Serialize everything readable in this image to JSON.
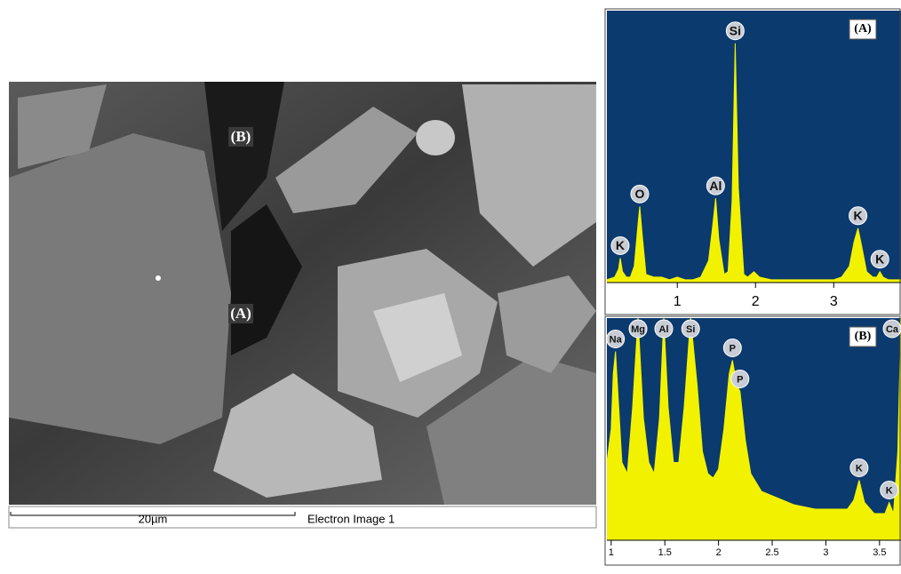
{
  "image": {
    "labels": [
      "(B)",
      "(A)"
    ],
    "scale_bar": "20µm",
    "caption": "Electron Image 1"
  },
  "chart_data": [
    {
      "type": "area",
      "title": "(A)",
      "color": "#f2f200",
      "background": "#0b3a6e",
      "xlim": [
        0.1,
        3.86
      ],
      "ylim": [
        0,
        100
      ],
      "xticks": [
        1,
        2,
        3
      ],
      "x": [
        0.1,
        0.2,
        0.25,
        0.27,
        0.3,
        0.35,
        0.4,
        0.45,
        0.5,
        0.52,
        0.55,
        0.6,
        0.7,
        0.8,
        0.9,
        1.0,
        1.1,
        1.2,
        1.3,
        1.4,
        1.45,
        1.49,
        1.53,
        1.6,
        1.65,
        1.7,
        1.74,
        1.78,
        1.85,
        1.9,
        1.98,
        2.05,
        2.2,
        2.4,
        2.6,
        2.8,
        3.0,
        3.1,
        3.2,
        3.26,
        3.31,
        3.36,
        3.42,
        3.5,
        3.55,
        3.59,
        3.63,
        3.7,
        3.8,
        3.86
      ],
      "values": [
        1,
        2,
        5,
        9,
        4,
        2,
        2,
        6,
        22,
        28,
        18,
        3,
        2,
        2,
        1,
        2,
        1,
        1,
        2,
        8,
        20,
        31,
        16,
        3,
        4,
        30,
        88,
        35,
        3,
        2,
        4,
        2,
        1,
        1,
        1,
        1,
        1,
        2,
        6,
        15,
        20,
        13,
        4,
        2,
        2,
        4,
        2,
        1,
        1,
        1
      ],
      "peak_labels": [
        {
          "label": "K",
          "x": 0.27
        },
        {
          "label": "O",
          "x": 0.52
        },
        {
          "label": "Al",
          "x": 1.49
        },
        {
          "label": "Si",
          "x": 1.74
        },
        {
          "label": "K",
          "x": 3.31
        },
        {
          "label": "K",
          "x": 3.59
        }
      ]
    },
    {
      "type": "area",
      "title": "(B)",
      "color": "#f2f200",
      "background": "#0b3a6e",
      "xlim": [
        0.96,
        3.7
      ],
      "ylim": [
        0,
        100
      ],
      "xticks": [
        1,
        1.5,
        2,
        2.5,
        3,
        3.5
      ],
      "x": [
        0.96,
        1.0,
        1.02,
        1.04,
        1.07,
        1.1,
        1.15,
        1.2,
        1.25,
        1.3,
        1.35,
        1.4,
        1.45,
        1.49,
        1.53,
        1.58,
        1.63,
        1.68,
        1.74,
        1.8,
        1.85,
        1.9,
        1.95,
        2.0,
        2.05,
        2.1,
        2.13,
        2.17,
        2.2,
        2.25,
        2.3,
        2.4,
        2.5,
        2.6,
        2.7,
        2.8,
        2.9,
        3.0,
        3.1,
        3.2,
        3.26,
        3.31,
        3.36,
        3.45,
        3.55,
        3.59,
        3.63,
        3.67,
        3.7
      ],
      "values": [
        35,
        50,
        75,
        85,
        60,
        35,
        30,
        60,
        100,
        55,
        35,
        30,
        55,
        100,
        60,
        35,
        35,
        60,
        100,
        70,
        40,
        30,
        28,
        32,
        50,
        75,
        81,
        70,
        67,
        45,
        30,
        22,
        20,
        18,
        16,
        15,
        14,
        14,
        14,
        14,
        18,
        27,
        17,
        12,
        12,
        17,
        12,
        40,
        100
      ],
      "peak_labels": [
        {
          "label": "Na",
          "x": 1.04
        },
        {
          "label": "Mg",
          "x": 1.25
        },
        {
          "label": "Al",
          "x": 1.49
        },
        {
          "label": "Si",
          "x": 1.74
        },
        {
          "label": "P",
          "x": 2.13
        },
        {
          "label": "P",
          "x": 2.2
        },
        {
          "label": "K",
          "x": 3.31
        },
        {
          "label": "K",
          "x": 3.59
        },
        {
          "label": "Ca",
          "x": 3.69
        }
      ]
    }
  ]
}
